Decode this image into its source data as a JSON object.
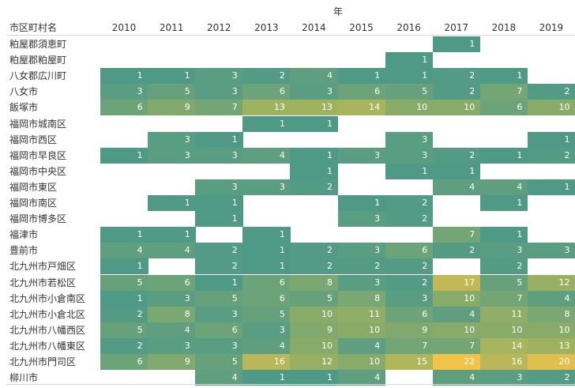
{
  "header": {
    "column_title": "年",
    "row_header": "市区町村名"
  },
  "chart_data": {
    "type": "heatmap",
    "title": "",
    "column_title": "年",
    "row_header": "市区町村名",
    "years": [
      "2010",
      "2011",
      "2012",
      "2013",
      "2014",
      "2015",
      "2016",
      "2017",
      "2018",
      "2019"
    ],
    "rows": [
      {
        "name": "粕屋郡須恵町",
        "values": [
          null,
          null,
          null,
          null,
          null,
          null,
          null,
          1,
          null,
          null
        ]
      },
      {
        "name": "粕屋郡粕屋町",
        "values": [
          null,
          null,
          null,
          null,
          null,
          null,
          1,
          null,
          null,
          null
        ]
      },
      {
        "name": "八女郡広川町",
        "values": [
          1,
          1,
          3,
          2,
          4,
          1,
          1,
          2,
          1,
          null
        ]
      },
      {
        "name": "八女市",
        "values": [
          3,
          5,
          3,
          6,
          3,
          6,
          5,
          2,
          7,
          2
        ]
      },
      {
        "name": "飯塚市",
        "values": [
          6,
          9,
          7,
          13,
          13,
          14,
          10,
          10,
          6,
          10
        ]
      },
      {
        "name": "福岡市城南区",
        "values": [
          null,
          null,
          null,
          1,
          1,
          null,
          null,
          null,
          null,
          null
        ]
      },
      {
        "name": "福岡市西区",
        "values": [
          null,
          3,
          1,
          null,
          null,
          null,
          3,
          null,
          null,
          1
        ]
      },
      {
        "name": "福岡市早良区",
        "values": [
          1,
          3,
          3,
          4,
          1,
          3,
          3,
          2,
          1,
          2
        ]
      },
      {
        "name": "福岡市中央区",
        "values": [
          null,
          null,
          null,
          null,
          1,
          null,
          1,
          1,
          null,
          null
        ]
      },
      {
        "name": "福岡市東区",
        "values": [
          null,
          null,
          3,
          3,
          2,
          null,
          null,
          4,
          4,
          1
        ]
      },
      {
        "name": "福岡市南区",
        "values": [
          null,
          1,
          1,
          null,
          null,
          1,
          2,
          null,
          1,
          null
        ]
      },
      {
        "name": "福岡市博多区",
        "values": [
          null,
          null,
          1,
          null,
          null,
          3,
          2,
          null,
          null,
          null
        ]
      },
      {
        "name": "福津市",
        "values": [
          1,
          1,
          null,
          1,
          null,
          null,
          null,
          7,
          1,
          null
        ]
      },
      {
        "name": "豊前市",
        "values": [
          4,
          4,
          2,
          1,
          2,
          3,
          6,
          2,
          3,
          3
        ]
      },
      {
        "name": "北九州市戸畑区",
        "values": [
          1,
          null,
          2,
          1,
          2,
          2,
          2,
          null,
          2,
          null
        ]
      },
      {
        "name": "北九州市若松区",
        "values": [
          5,
          6,
          1,
          6,
          8,
          3,
          2,
          17,
          5,
          12
        ]
      },
      {
        "name": "北九州市小倉南区",
        "values": [
          1,
          3,
          5,
          6,
          5,
          8,
          3,
          10,
          7,
          4
        ]
      },
      {
        "name": "北九州市小倉北区",
        "values": [
          2,
          8,
          3,
          5,
          10,
          11,
          6,
          4,
          11,
          8
        ]
      },
      {
        "name": "北九州市八幡西区",
        "values": [
          5,
          4,
          6,
          3,
          9,
          10,
          9,
          10,
          10,
          10
        ]
      },
      {
        "name": "北九州市八幡東区",
        "values": [
          2,
          3,
          3,
          4,
          10,
          4,
          7,
          7,
          14,
          13
        ]
      },
      {
        "name": "北九州市門司区",
        "values": [
          6,
          9,
          5,
          16,
          12,
          10,
          15,
          22,
          16,
          20
        ]
      },
      {
        "name": "柳川市",
        "values": [
          null,
          null,
          4,
          1,
          1,
          4,
          null,
          4,
          3,
          2
        ]
      }
    ],
    "color_scale": {
      "min": 1,
      "max": 22,
      "colors": [
        "#4f9a87",
        "#9bb161",
        "#f0c34a"
      ]
    },
    "legend": "none",
    "grid": false
  }
}
